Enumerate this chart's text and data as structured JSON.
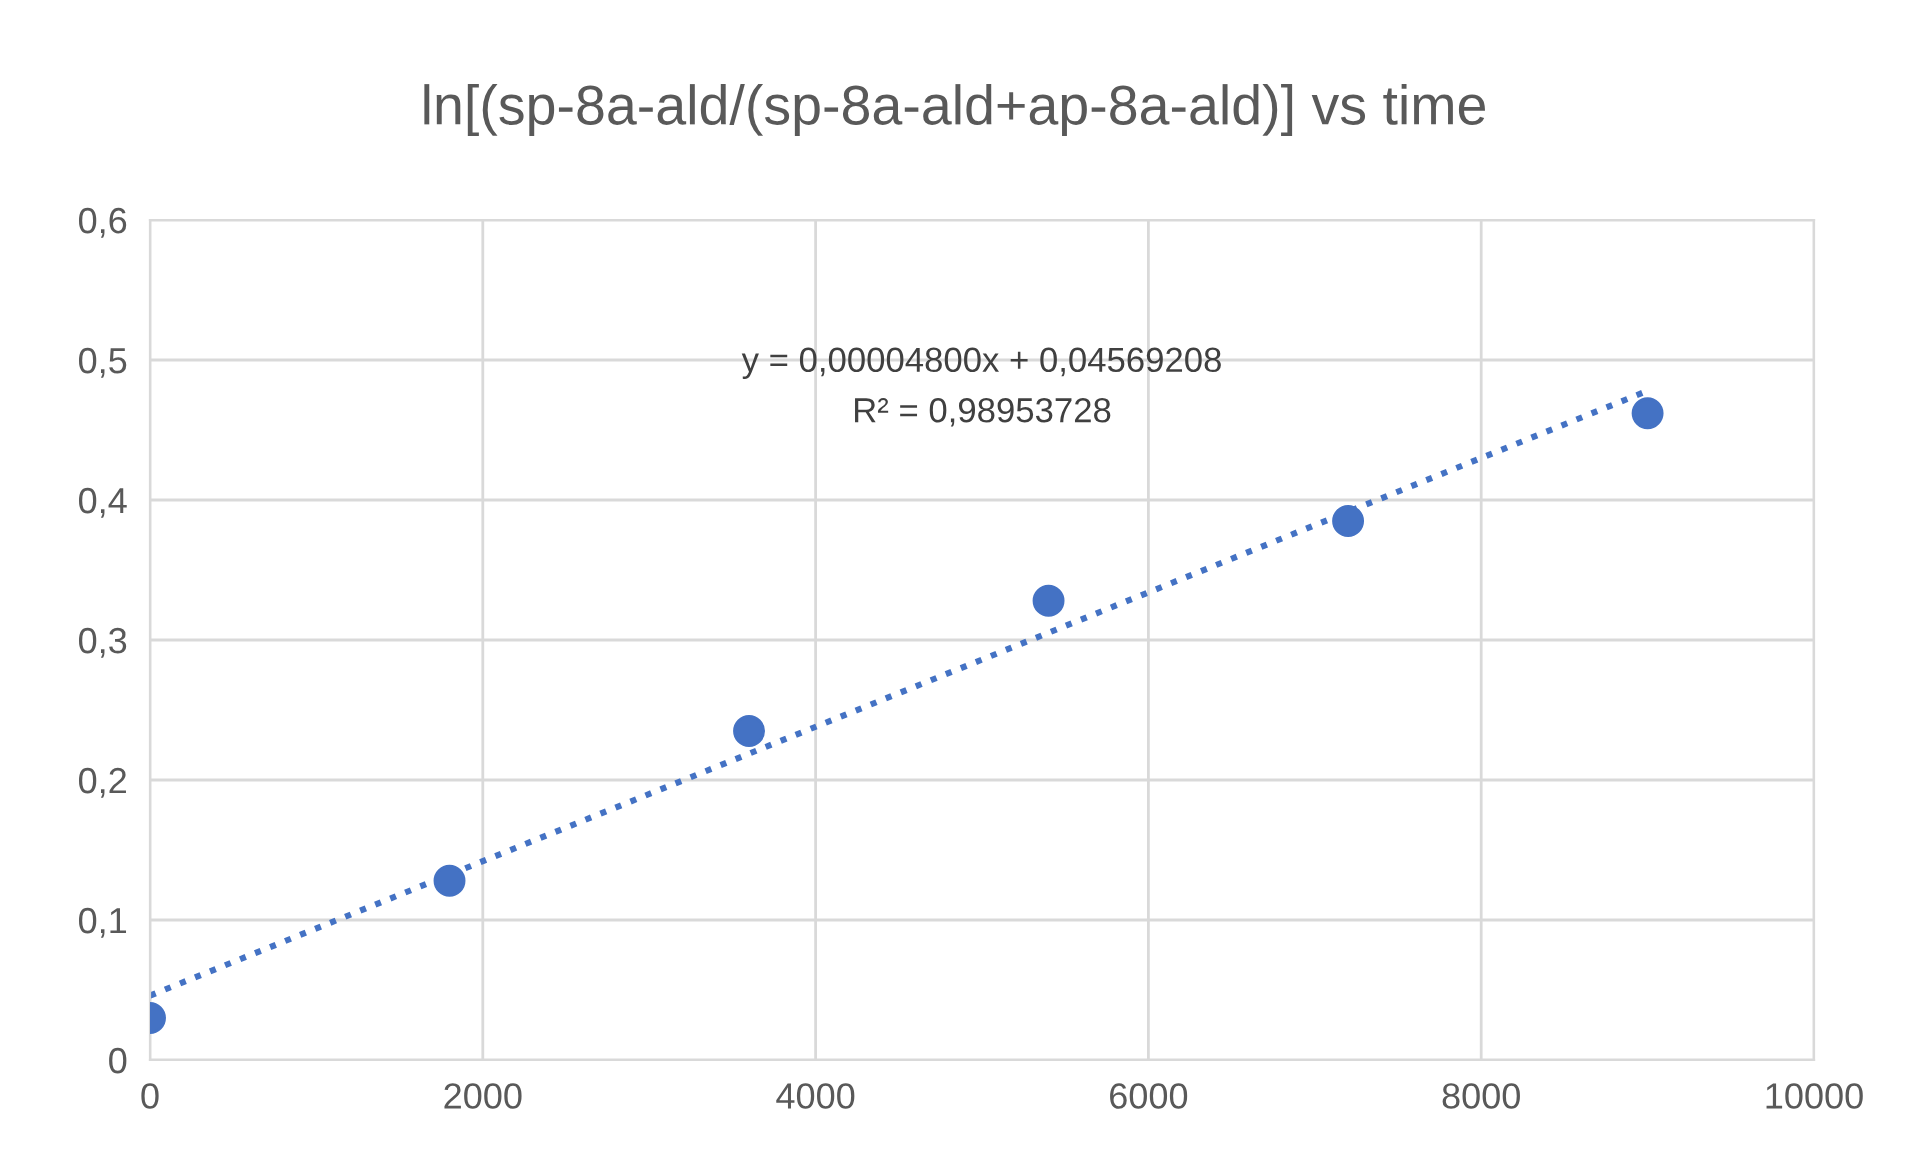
{
  "chart_data": {
    "type": "scatter",
    "title": "ln[(sp-8a-ald/(sp-8a-ald+ap-8a-ald)] vs time",
    "series": [
      {
        "color": "#4472c4",
        "marker": "circle",
        "x": [
          0,
          1800,
          3600,
          5400,
          7200,
          9000
        ],
        "values": [
          0.03,
          0.128,
          0.235,
          0.328,
          0.385,
          0.462
        ]
      },
      {
        "type": "line",
        "color": "#4472c4",
        "line_style": "dotted",
        "marker": "none",
        "x": [
          0,
          9000
        ],
        "values": [
          0.046,
          0.478
        ]
      }
    ],
    "annotations": [
      "y = 0,00004800x + 0,04569208",
      "R² = 0,98953728"
    ],
    "xlim": [
      0,
      10000
    ],
    "xticks": [
      0,
      2000,
      4000,
      6000,
      8000,
      10000
    ],
    "ylim": [
      0,
      0.6
    ],
    "yticks": [
      0,
      {
        "value": 0.1,
        "label": "0,1"
      },
      {
        "value": 0.2,
        "label": "0,2"
      },
      {
        "value": 0.3,
        "label": "0,3"
      },
      {
        "value": 0.4,
        "label": "0,4"
      },
      {
        "value": 0.5,
        "label": "0,5"
      },
      {
        "value": 0.6,
        "label": "0,6"
      }
    ],
    "grid": true,
    "legend": false
  }
}
